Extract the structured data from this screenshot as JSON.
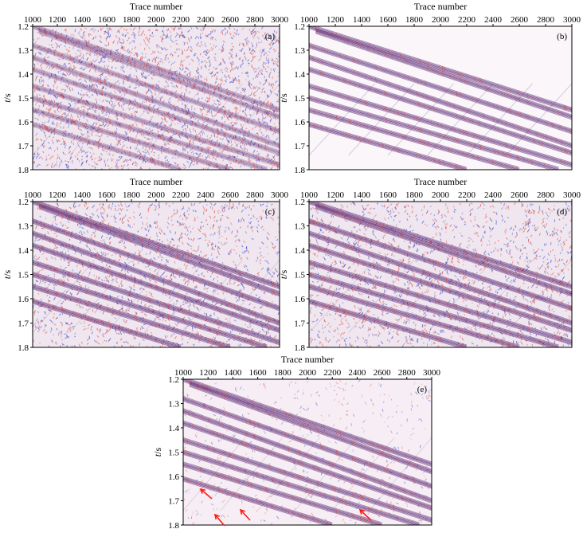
{
  "figure": {
    "x_label": "Trace number",
    "y_label_italic": "t",
    "y_label_unit": "/s",
    "x_ticks": [
      "1000",
      "1200",
      "1400",
      "1600",
      "1800",
      "2000",
      "2200",
      "2400",
      "2600",
      "2800",
      "3000"
    ],
    "y_ticks": [
      "1.2",
      "1.3",
      "1.4",
      "1.5",
      "1.6",
      "1.7",
      "1.8"
    ],
    "panels": [
      {
        "id": "a",
        "label": "(a)",
        "style": "noisy-full",
        "noise": "heavy"
      },
      {
        "id": "b",
        "label": "(b)",
        "style": "clean",
        "noise": "none"
      },
      {
        "id": "c",
        "label": "(c)",
        "style": "noisy-partial",
        "noise": "medium"
      },
      {
        "id": "d",
        "label": "(d)",
        "style": "noisy-partial",
        "noise": "medium"
      },
      {
        "id": "e",
        "label": "(e)",
        "style": "denoised",
        "noise": "light",
        "has_arrows": true
      }
    ],
    "colors": {
      "event": "#5a2a78",
      "noise_red": "#e0463a",
      "noise_blue": "#3747c9",
      "background_clean": "#f7f1f8",
      "arrow": "#ff1a1a"
    }
  }
}
